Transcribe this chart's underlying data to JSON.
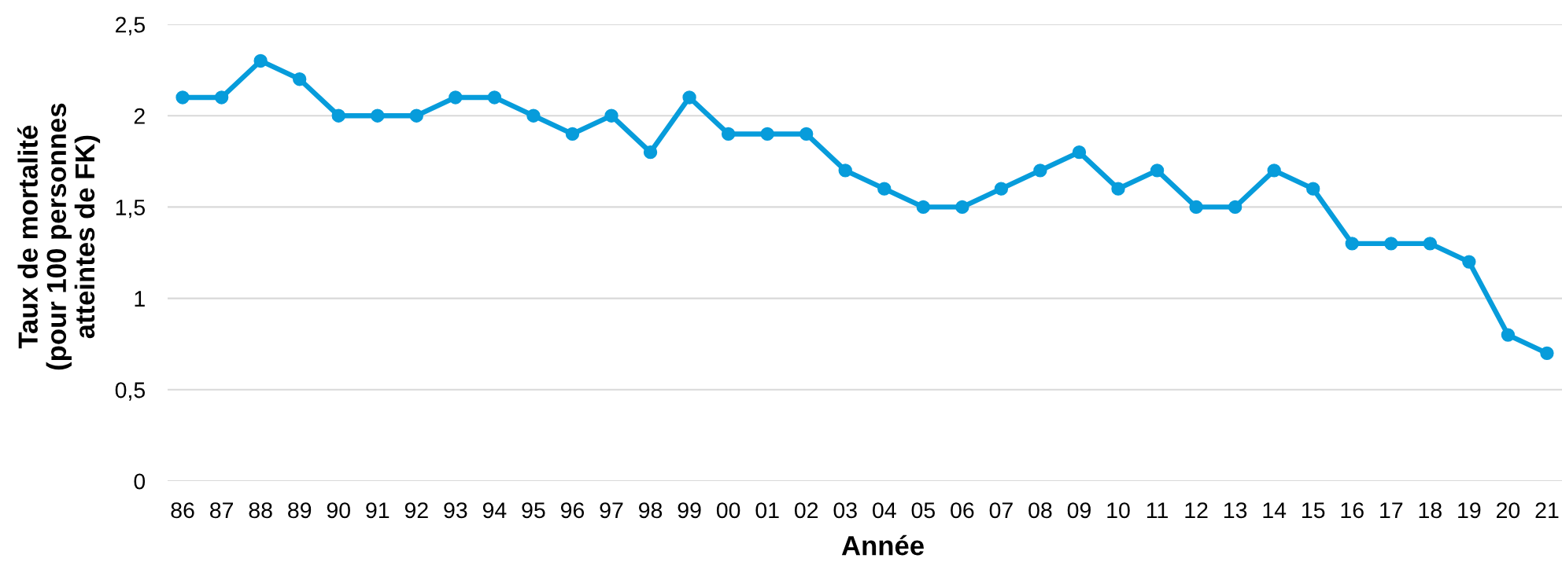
{
  "chart_data": {
    "type": "line",
    "xlabel": "Année",
    "ylabel": "Taux de mortalité\n(pour 100 personnes\natteintes de FK)",
    "categories": [
      "86",
      "87",
      "88",
      "89",
      "90",
      "91",
      "92",
      "93",
      "94",
      "95",
      "96",
      "97",
      "98",
      "99",
      "00",
      "01",
      "02",
      "03",
      "04",
      "05",
      "06",
      "07",
      "08",
      "09",
      "10",
      "11",
      "12",
      "13",
      "14",
      "15",
      "16",
      "17",
      "18",
      "19",
      "20",
      "21"
    ],
    "series": [
      {
        "color": "#079cdb",
        "values": [
          2.1,
          2.1,
          2.3,
          2.2,
          2.0,
          2.0,
          2.0,
          2.1,
          2.1,
          2.0,
          1.9,
          2.0,
          1.8,
          2.1,
          1.9,
          1.9,
          1.9,
          1.7,
          1.6,
          1.5,
          1.5,
          1.6,
          1.7,
          1.8,
          1.6,
          1.7,
          1.5,
          1.5,
          1.7,
          1.6,
          1.3,
          1.3,
          1.3,
          1.2,
          0.8,
          0.7
        ]
      }
    ],
    "ylim": [
      0,
      2.5
    ],
    "yticks": [
      0,
      {
        "value": 0.5,
        "label": "0,5"
      },
      1,
      {
        "value": 1.5,
        "label": "1,5"
      },
      2,
      {
        "value": 2.5,
        "label": "2,5"
      }
    ],
    "grid": "y",
    "marker": "circle",
    "line_style": "solid"
  }
}
